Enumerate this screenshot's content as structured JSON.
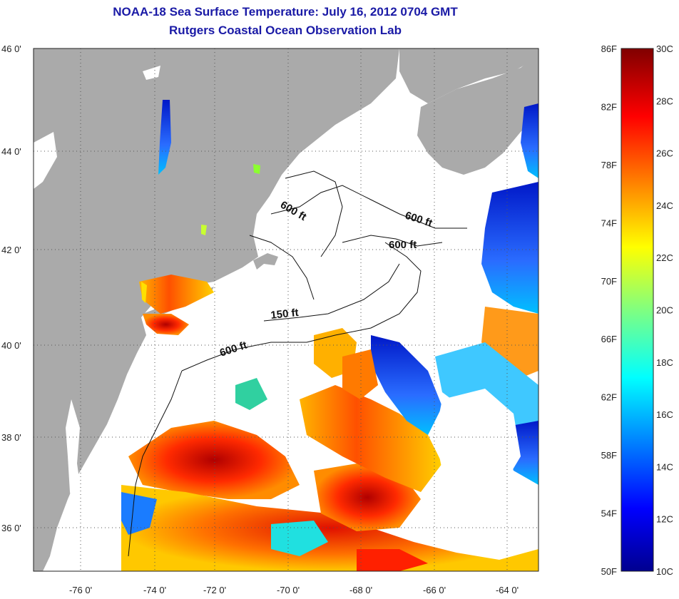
{
  "title": "NOAA-18 Sea Surface Temperature:  July 16, 2012 0704 GMT",
  "subtitle": "Rutgers Coastal Ocean Observation Lab",
  "map": {
    "lon_ticks": [
      "-76 0'",
      "-74 0'",
      "-72 0'",
      "-70 0'",
      "-68 0'",
      "-66 0'",
      "-64 0'"
    ],
    "lat_ticks": [
      "46 0'",
      "44 0'",
      "42 0'",
      "40 0'",
      "38 0'",
      "36 0'"
    ],
    "contour_labels": [
      "600 ft",
      "600 ft",
      "600 ft",
      "150 ft",
      "600 ft"
    ],
    "colors": {
      "land": "#aaaaaa",
      "ocean_nodata": "#ffffff",
      "grid": "#555555"
    }
  },
  "colorbar": {
    "fahrenheit": [
      "86F",
      "82F",
      "78F",
      "74F",
      "70F",
      "66F",
      "62F",
      "58F",
      "54F",
      "50F"
    ],
    "celsius": [
      "30C",
      "28C",
      "26C",
      "24C",
      "22C",
      "20C",
      "18C",
      "16C",
      "14C",
      "12C",
      "10C"
    ],
    "range_c": [
      10,
      30
    ],
    "range_f": [
      50,
      86
    ],
    "colormap": "jet"
  }
}
